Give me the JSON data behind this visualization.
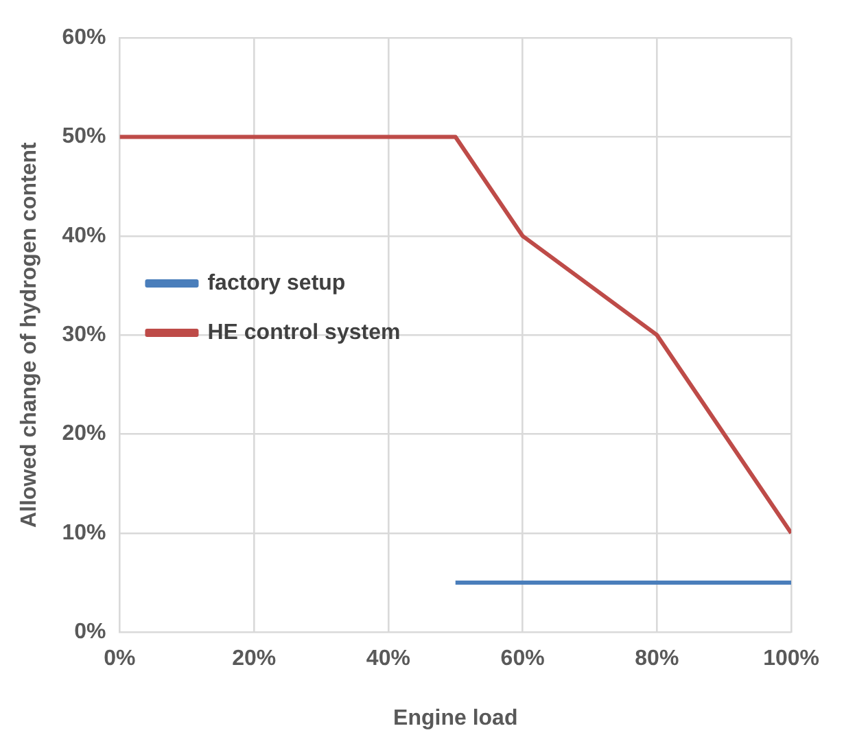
{
  "chart_data": {
    "type": "line",
    "xlabel": "Engine load",
    "ylabel": "Allowed change of hydrogen content",
    "xlim": [
      0,
      100
    ],
    "xticks": [
      {
        "value": 0,
        "label": "0%"
      },
      {
        "value": 20,
        "label": "20%"
      },
      {
        "value": 40,
        "label": "40%"
      },
      {
        "value": 60,
        "label": "60%"
      },
      {
        "value": 80,
        "label": "80%"
      },
      {
        "value": 100,
        "label": "100%"
      }
    ],
    "ylim": [
      0,
      60
    ],
    "yticks": [
      {
        "value": 0,
        "label": "0%"
      },
      {
        "value": 10,
        "label": "10%"
      },
      {
        "value": 20,
        "label": "20%"
      },
      {
        "value": 30,
        "label": "30%"
      },
      {
        "value": 40,
        "label": "40%"
      },
      {
        "value": 50,
        "label": "50%"
      },
      {
        "value": 60,
        "label": "60%"
      }
    ],
    "grid": true,
    "legend": "top",
    "marker": "none",
    "line_style": "solid",
    "series": [
      {
        "name": "factory setup",
        "color": "#4a7ebb",
        "x": [
          50,
          100
        ],
        "values": [
          5,
          5
        ]
      },
      {
        "name": "HE control system",
        "color": "#be4b48",
        "x": [
          0,
          50,
          60,
          80,
          100
        ],
        "values": [
          50,
          50,
          40,
          30,
          10
        ]
      }
    ]
  }
}
